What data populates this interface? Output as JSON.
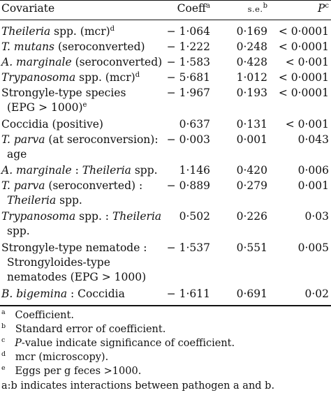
{
  "header": {
    "covariate": "Covariate",
    "coeff": "Coeff",
    "coeff_sup": "a",
    "se": "s.e.",
    "se_sup": "b",
    "p": "P",
    "p_sup": "c"
  },
  "rows": [
    {
      "cov_it": "Theileria",
      "cov_rest": " spp. (mcr)",
      "cov_sup": "d",
      "coef": "− 1·064",
      "se": "0·169",
      "p": "< 0·0001"
    },
    {
      "cov_it": "T. mutans",
      "cov_rest": " (seroconverted)",
      "coef": "− 1·222",
      "se": "0·248",
      "p": "< 0·0001"
    },
    {
      "cov_it": "A. marginale",
      "cov_rest": " (seroconverted)",
      "coef": "− 1·583",
      "se": "0·428",
      "p": "< 0·001"
    },
    {
      "cov_it": "Trypanosoma",
      "cov_rest": " spp. (mcr)",
      "cov_sup": "d",
      "coef": "− 5·681",
      "se": "1·012",
      "p": "< 0·0001"
    },
    {
      "cov_line1": "Strongyle-type species",
      "cov_line2": "(EPG > 1000)",
      "cov_line2_sup": "e",
      "coef": "− 1·967",
      "se": "0·193",
      "p": "< 0·0001"
    },
    {
      "cov_line1": "Coccidia (positive)",
      "coef": "0·637",
      "se": "0·131",
      "p": "< 0·001"
    },
    {
      "cov_it": "T. parva",
      "cov_rest": " (at seroconversion):",
      "cov_line2": "age",
      "coef": "− 0·003",
      "se": "0·001",
      "p": "0·043"
    },
    {
      "cov_it": "A. marginale",
      "cov_rest": " : ",
      "cov_it2": "Theileria",
      "cov_rest2": " spp.",
      "coef": "1·146",
      "se": "0·420",
      "p": "0·006"
    },
    {
      "cov_it": "T. parva",
      "cov_rest": " (seroconverted) :",
      "cov_line2_it": "Theileria",
      "cov_line2": " spp.",
      "coef": "− 0·889",
      "se": "0·279",
      "p": "0·001"
    },
    {
      "cov_it": "Trypanosoma",
      "cov_rest": " spp. : ",
      "cov_it2": "Theileria",
      "cov_line2": "spp.",
      "coef": "0·502",
      "se": "0·226",
      "p": "0·03"
    },
    {
      "cov_line1": "Strongyle-type nematode :",
      "cov_line2": "Strongyloides-type",
      "cov_line3": "nematodes (EPG > 1000)",
      "coef": "− 1·537",
      "se": "0·551",
      "p": "0·005"
    },
    {
      "cov_it": "B. bigemina",
      "cov_rest": " : Coccidia",
      "coef": "− 1·611",
      "se": "0·691",
      "p": "0·02"
    }
  ],
  "footnotes": [
    {
      "mark": "a",
      "text": "Coefficient."
    },
    {
      "mark": "b",
      "text": "Standard error of coefficient."
    },
    {
      "mark": "c",
      "text_it": "P",
      "text": "-value indicate significance of coefficient."
    },
    {
      "mark": "d",
      "text": "mcr (microscopy)."
    },
    {
      "mark": "e",
      "text": "Eggs per g feces >1000."
    },
    {
      "mark": "",
      "text": "a:b indicates interactions between pathogen a and b."
    }
  ]
}
